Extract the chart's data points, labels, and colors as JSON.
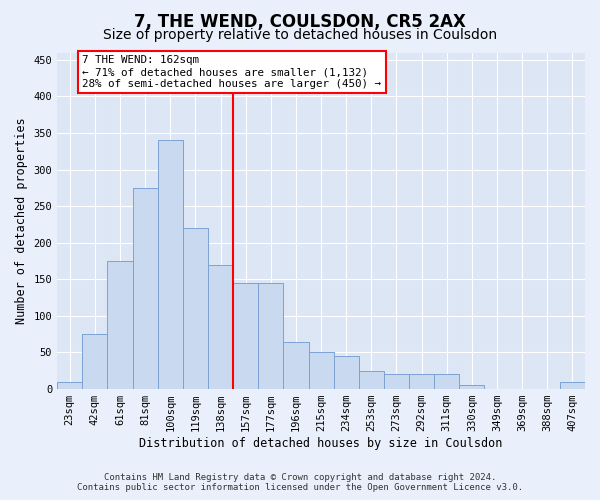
{
  "title": "7, THE WEND, COULSDON, CR5 2AX",
  "subtitle": "Size of property relative to detached houses in Coulsdon",
  "xlabel": "Distribution of detached houses by size in Coulsdon",
  "ylabel": "Number of detached properties",
  "footer_line1": "Contains HM Land Registry data © Crown copyright and database right 2024.",
  "footer_line2": "Contains public sector information licensed under the Open Government Licence v3.0.",
  "bin_labels": [
    "23sqm",
    "42sqm",
    "61sqm",
    "81sqm",
    "100sqm",
    "119sqm",
    "138sqm",
    "157sqm",
    "177sqm",
    "196sqm",
    "215sqm",
    "234sqm",
    "253sqm",
    "273sqm",
    "292sqm",
    "311sqm",
    "330sqm",
    "349sqm",
    "369sqm",
    "388sqm",
    "407sqm"
  ],
  "bar_values": [
    10,
    75,
    175,
    275,
    340,
    220,
    170,
    145,
    145,
    65,
    50,
    45,
    25,
    20,
    20,
    20,
    5,
    0,
    0,
    0,
    10
  ],
  "bar_color": "#c9d9f0",
  "bar_edge_color": "#7ba3d4",
  "vline_color": "red",
  "vline_index": 7,
  "annotation_text": "7 THE WEND: 162sqm\n← 71% of detached houses are smaller (1,132)\n28% of semi-detached houses are larger (450) →",
  "annotation_box_color": "white",
  "annotation_box_edge_color": "red",
  "ylim": [
    0,
    460
  ],
  "yticks": [
    0,
    50,
    100,
    150,
    200,
    250,
    300,
    350,
    400,
    450
  ],
  "background_color": "#eaf0fb",
  "plot_area_color": "#dde6f5",
  "title_fontsize": 12,
  "subtitle_fontsize": 10,
  "axis_label_fontsize": 8.5,
  "tick_fontsize": 7.5,
  "footer_fontsize": 6.5
}
